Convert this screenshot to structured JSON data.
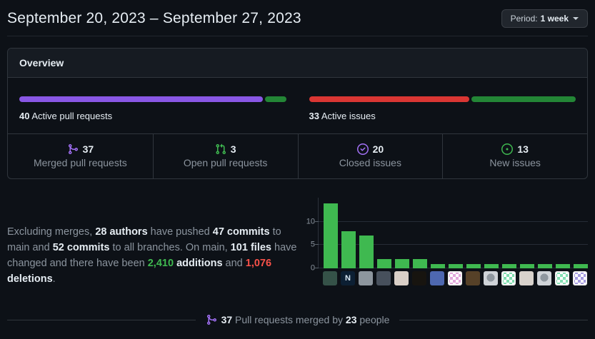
{
  "header": {
    "title": "September 20, 2023 – September 27, 2023",
    "period_button": {
      "prefix": "Period:",
      "value": "1 week"
    }
  },
  "overview": {
    "title": "Overview",
    "pr_meter": {
      "count": "40",
      "label": "Active pull requests",
      "segments": [
        {
          "color": "#8957e5",
          "pct": 92
        },
        {
          "color": "#238636",
          "pct": 8
        }
      ]
    },
    "issues_meter": {
      "count": "33",
      "label": "Active issues",
      "segments": [
        {
          "color": "#da3633",
          "pct": 60.5
        },
        {
          "color": "#238636",
          "pct": 39.5
        }
      ]
    },
    "stats": [
      {
        "icon": "git-merge-icon",
        "color": "#a371f7",
        "value": "37",
        "label": "Merged pull requests"
      },
      {
        "icon": "git-pull-request-icon",
        "color": "#3fb950",
        "value": "3",
        "label": "Open pull requests"
      },
      {
        "icon": "issue-closed-icon",
        "color": "#a371f7",
        "value": "20",
        "label": "Closed issues"
      },
      {
        "icon": "issue-opened-icon",
        "color": "#3fb950",
        "value": "13",
        "label": "New issues"
      }
    ]
  },
  "summary": {
    "spans": [
      {
        "t": "Excluding merges, ",
        "c": "muted"
      },
      {
        "t": "28 authors",
        "c": "strong"
      },
      {
        "t": " have pushed ",
        "c": "muted"
      },
      {
        "t": "47 commits",
        "c": "strong"
      },
      {
        "t": " to main and ",
        "c": "muted"
      },
      {
        "t": "52 commits",
        "c": "strong"
      },
      {
        "t": " to all branches. On main, ",
        "c": "muted"
      },
      {
        "t": "101 files",
        "c": "strong"
      },
      {
        "t": " have changed and there have been ",
        "c": "muted"
      },
      {
        "t": "2,410",
        "c": "green"
      },
      {
        "t": " ",
        "c": "muted"
      },
      {
        "t": "additions",
        "c": "strong"
      },
      {
        "t": " and ",
        "c": "muted"
      },
      {
        "t": "1,076",
        "c": "red"
      },
      {
        "t": " ",
        "c": "muted"
      },
      {
        "t": "deletions",
        "c": "strong"
      },
      {
        "t": ".",
        "c": "muted"
      }
    ]
  },
  "chart_data": {
    "type": "bar",
    "title": "Commits per author (one bar per contributor avatar)",
    "values": [
      14,
      8,
      7,
      2,
      2,
      2,
      1,
      1,
      1,
      1,
      1,
      1,
      1,
      1,
      1
    ],
    "yticks": [
      0,
      5,
      10
    ],
    "ylim": [
      0,
      15.2
    ],
    "grid": true,
    "bar_color": "#3fb950",
    "avatars": [
      {
        "kind": "photo",
        "bg": "#355248"
      },
      {
        "kind": "logo",
        "bg": "#0c1f33",
        "glyph": "N",
        "fg": "#d8e6f2"
      },
      {
        "kind": "photo",
        "bg": "#8d969e"
      },
      {
        "kind": "photo",
        "bg": "#47505c"
      },
      {
        "kind": "photo",
        "bg": "#d9cfc7"
      },
      {
        "kind": "photo",
        "bg": "#17140f"
      },
      {
        "kind": "photo",
        "bg": "#4e68b0"
      },
      {
        "kind": "identicon",
        "bg": "#ffffff",
        "accent": "#e2a7dc"
      },
      {
        "kind": "photo",
        "bg": "#564128"
      },
      {
        "kind": "octocat",
        "bg": "#cfd3d8"
      },
      {
        "kind": "identicon",
        "bg": "#ffffff",
        "accent": "#7fdcae"
      },
      {
        "kind": "photo",
        "bg": "#d8d2cc"
      },
      {
        "kind": "octocat",
        "bg": "#cfd3d8"
      },
      {
        "kind": "identicon",
        "bg": "#ffffff",
        "accent": "#84e0b4"
      },
      {
        "kind": "identicon",
        "bg": "#ffffff",
        "accent": "#a59ce0"
      }
    ]
  },
  "footer": {
    "spans": [
      {
        "t": "37",
        "c": "strong"
      },
      {
        "t": " Pull requests merged by ",
        "c": "muted"
      },
      {
        "t": "23",
        "c": "strong"
      },
      {
        "t": " people",
        "c": "muted"
      }
    ]
  }
}
